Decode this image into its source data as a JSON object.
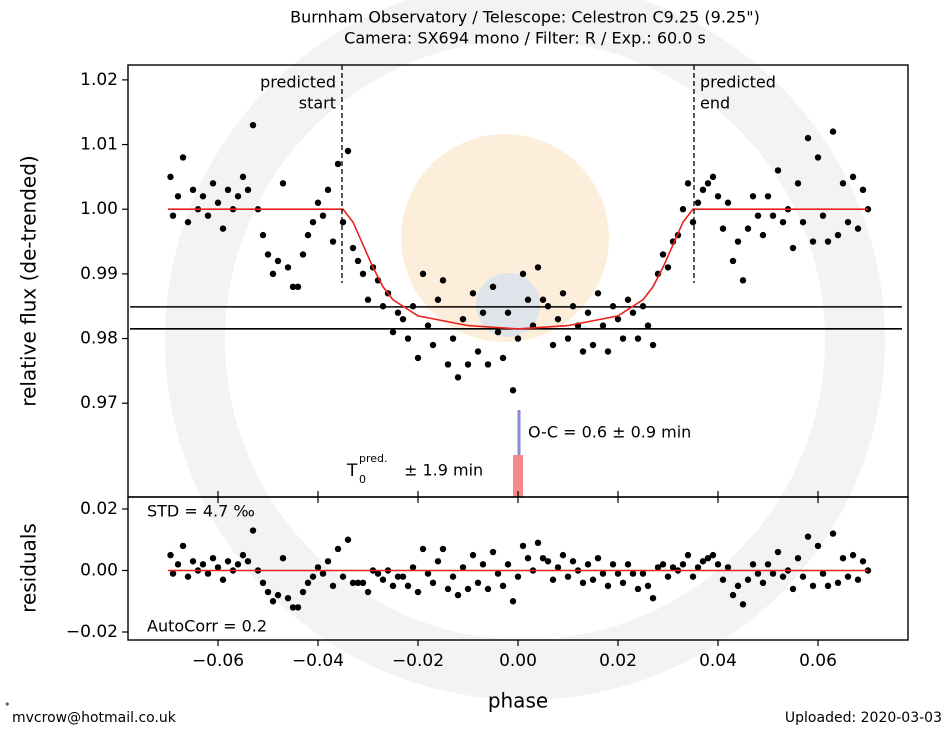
{
  "chart_data": [
    {
      "type": "scatter",
      "title": [
        "Burnham Observatory / Telescope: Celestron C9.25 (9.25\")",
        "Camera: SX694 mono / Filter: R / Exp.: 60.0 s"
      ],
      "ylabel": "relative flux (de-trended)",
      "color": "#000000",
      "x": [
        -0.0695,
        -0.069,
        -0.068,
        -0.067,
        -0.066,
        -0.065,
        -0.064,
        -0.063,
        -0.062,
        -0.061,
        -0.06,
        -0.059,
        -0.058,
        -0.057,
        -0.056,
        -0.055,
        -0.054,
        -0.053,
        -0.052,
        -0.051,
        -0.05,
        -0.049,
        -0.048,
        -0.047,
        -0.046,
        -0.045,
        -0.044,
        -0.043,
        -0.042,
        -0.041,
        -0.04,
        -0.039,
        -0.038,
        -0.037,
        -0.036,
        -0.035,
        -0.034,
        -0.033,
        -0.032,
        -0.031,
        -0.03,
        -0.029,
        -0.028,
        -0.027,
        -0.026,
        -0.025,
        -0.024,
        -0.023,
        -0.022,
        -0.021,
        -0.02,
        -0.019,
        -0.018,
        -0.017,
        -0.016,
        -0.015,
        -0.014,
        -0.013,
        -0.012,
        -0.011,
        -0.01,
        -0.009,
        -0.008,
        -0.007,
        -0.006,
        -0.005,
        -0.004,
        -0.003,
        -0.002,
        -0.001,
        0,
        0.001,
        0.002,
        0.003,
        0.004,
        0.005,
        0.006,
        0.007,
        0.008,
        0.009,
        0.01,
        0.011,
        0.012,
        0.013,
        0.014,
        0.015,
        0.016,
        0.017,
        0.018,
        0.019,
        0.02,
        0.021,
        0.022,
        0.023,
        0.024,
        0.025,
        0.026,
        0.027,
        0.028,
        0.029,
        0.03,
        0.031,
        0.032,
        0.033,
        0.034,
        0.035,
        0.036,
        0.037,
        0.038,
        0.039,
        0.04,
        0.041,
        0.042,
        0.043,
        0.044,
        0.045,
        0.046,
        0.047,
        0.048,
        0.049,
        0.05,
        0.051,
        0.052,
        0.053,
        0.054,
        0.055,
        0.056,
        0.057,
        0.058,
        0.059,
        0.06,
        0.061,
        0.062,
        0.063,
        0.064,
        0.065,
        0.066,
        0.067,
        0.068,
        0.069,
        0.07
      ],
      "values": [
        1.005,
        0.999,
        1.002,
        1.008,
        0.998,
        1.003,
        1.0,
        1.002,
        0.999,
        1.004,
        1.001,
        0.997,
        1.003,
        1.0,
        1.002,
        1.005,
        1.003,
        1.013,
        1.0,
        0.996,
        0.993,
        0.99,
        0.992,
        1.004,
        0.991,
        0.988,
        0.988,
        0.993,
        0.996,
        0.998,
        1.001,
        0.999,
        1.003,
        0.995,
        1.007,
        0.998,
        1.009,
        0.994,
        0.992,
        0.99,
        0.986,
        0.991,
        0.989,
        0.985,
        0.987,
        0.981,
        0.984,
        0.983,
        0.98,
        0.985,
        0.977,
        0.99,
        0.982,
        0.979,
        0.986,
        0.989,
        0.976,
        0.98,
        0.974,
        0.983,
        0.976,
        0.987,
        0.978,
        0.984,
        0.976,
        0.988,
        0.981,
        0.977,
        0.984,
        0.972,
        0.98,
        0.99,
        0.986,
        0.982,
        0.991,
        0.986,
        0.985,
        0.979,
        0.983,
        0.987,
        0.98,
        0.985,
        0.982,
        0.978,
        0.984,
        0.979,
        0.987,
        0.982,
        0.978,
        0.985,
        0.983,
        0.98,
        0.986,
        0.984,
        0.98,
        0.985,
        0.982,
        0.979,
        0.99,
        0.993,
        0.991,
        0.995,
        0.996,
        1.0,
        1.004,
        0.998,
        1.001,
        1.003,
        1.004,
        1.005,
        1.002,
        0.997,
        1.001,
        0.992,
        0.995,
        0.989,
        0.997,
        1.002,
        0.999,
        0.996,
        1.002,
        0.999,
        1.006,
        0.998,
        1.0,
        0.994,
        1.004,
        0.998,
        1.011,
        0.995,
        1.008,
        0.999,
        0.995,
        1.012,
        0.996,
        1.004,
        0.998,
        1.005,
        0.997,
        1.003,
        1.0
      ],
      "model": {
        "color": "#e8221e",
        "x": [
          -0.07,
          -0.035,
          -0.033,
          -0.031,
          -0.029,
          -0.027,
          -0.025,
          -0.02,
          -0.01,
          0,
          0.01,
          0.02,
          0.025,
          0.027,
          0.029,
          0.031,
          0.033,
          0.035,
          0.07
        ],
        "values": [
          1.0,
          1.0,
          0.998,
          0.9945,
          0.991,
          0.988,
          0.986,
          0.9835,
          0.982,
          0.9815,
          0.982,
          0.9835,
          0.986,
          0.988,
          0.991,
          0.9945,
          0.998,
          1.0,
          1.0
        ]
      },
      "hlines": [
        0.9849,
        0.9815
      ],
      "predicted_start": {
        "x": -0.0352,
        "label": [
          "predicted",
          "start"
        ]
      },
      "predicted_end": {
        "x": 0.0352,
        "label": [
          "predicted",
          "end"
        ]
      },
      "oc_label": "O-C = 0.6 ± 0.9 min",
      "t0_label": {
        "main": "T",
        "sub": "0",
        "sup": "pred.",
        "rest": "± 1.9 min"
      },
      "xlim": [
        -0.078,
        0.078
      ],
      "xticks": [
        -0.06,
        -0.04,
        -0.02,
        0,
        0.02,
        0.04,
        0.06
      ],
      "ylim": [
        0.9555,
        1.0223
      ],
      "yticks": [
        1.02,
        1.01,
        {
          "value": 1.0,
          "label": "1.00"
        },
        0.99,
        0.98,
        0.97
      ]
    },
    {
      "type": "scatter",
      "ylabel": "residuals",
      "xlabel": "phase",
      "color": "#000000",
      "std_label": "STD = 4.7 ‰",
      "autocorr_label": "AutoCorr = 0.2",
      "x": [
        -0.0695,
        -0.069,
        -0.068,
        -0.067,
        -0.066,
        -0.065,
        -0.064,
        -0.063,
        -0.062,
        -0.061,
        -0.06,
        -0.059,
        -0.058,
        -0.057,
        -0.056,
        -0.055,
        -0.054,
        -0.053,
        -0.052,
        -0.051,
        -0.05,
        -0.049,
        -0.048,
        -0.047,
        -0.046,
        -0.045,
        -0.044,
        -0.043,
        -0.042,
        -0.041,
        -0.04,
        -0.039,
        -0.038,
        -0.037,
        -0.036,
        -0.035,
        -0.034,
        -0.033,
        -0.032,
        -0.031,
        -0.03,
        -0.029,
        -0.028,
        -0.027,
        -0.026,
        -0.025,
        -0.024,
        -0.023,
        -0.022,
        -0.021,
        -0.02,
        -0.019,
        -0.018,
        -0.017,
        -0.016,
        -0.015,
        -0.014,
        -0.013,
        -0.012,
        -0.011,
        -0.01,
        -0.009,
        -0.008,
        -0.007,
        -0.006,
        -0.005,
        -0.004,
        -0.003,
        -0.002,
        -0.001,
        0,
        0.001,
        0.002,
        0.003,
        0.004,
        0.005,
        0.006,
        0.007,
        0.008,
        0.009,
        0.01,
        0.011,
        0.012,
        0.013,
        0.014,
        0.015,
        0.016,
        0.017,
        0.018,
        0.019,
        0.02,
        0.021,
        0.022,
        0.023,
        0.024,
        0.025,
        0.026,
        0.027,
        0.028,
        0.029,
        0.03,
        0.031,
        0.032,
        0.033,
        0.034,
        0.035,
        0.036,
        0.037,
        0.038,
        0.039,
        0.04,
        0.041,
        0.042,
        0.043,
        0.044,
        0.045,
        0.046,
        0.047,
        0.048,
        0.049,
        0.05,
        0.051,
        0.052,
        0.053,
        0.054,
        0.055,
        0.056,
        0.057,
        0.058,
        0.059,
        0.06,
        0.061,
        0.062,
        0.063,
        0.064,
        0.065,
        0.066,
        0.067,
        0.068,
        0.069,
        0.07
      ],
      "values": [
        0.005,
        -0.001,
        0.002,
        0.008,
        -0.002,
        0.003,
        0.0,
        0.002,
        -0.001,
        0.004,
        0.001,
        -0.003,
        0.003,
        0.0,
        0.002,
        0.005,
        0.003,
        0.013,
        0.0,
        -0.004,
        -0.007,
        -0.01,
        -0.008,
        0.004,
        -0.009,
        -0.012,
        -0.012,
        -0.007,
        -0.004,
        -0.002,
        0.001,
        -0.001,
        0.003,
        -0.005,
        0.007,
        -0.002,
        0.01,
        -0.004,
        -0.004,
        -0.004,
        -0.007,
        0.0,
        -0.001,
        -0.003,
        0.0,
        -0.005,
        -0.002,
        -0.002,
        -0.005,
        0.001,
        -0.007,
        0.007,
        -0.001,
        -0.004,
        0.003,
        0.007,
        -0.006,
        -0.002,
        -0.008,
        0.001,
        -0.006,
        0.005,
        -0.004,
        0.002,
        -0.006,
        0.006,
        -0.001,
        -0.005,
        0.002,
        -0.01,
        -0.002,
        0.008,
        0.004,
        0.0,
        0.009,
        0.004,
        0.003,
        -0.003,
        0.001,
        0.005,
        -0.002,
        0.003,
        0.0,
        -0.004,
        0.002,
        -0.003,
        0.004,
        -0.001,
        -0.005,
        0.002,
        -0.001,
        -0.004,
        0.002,
        -0.001,
        -0.006,
        -0.001,
        -0.005,
        -0.009,
        0.001,
        0.002,
        -0.002,
        0.001,
        0.0,
        0.002,
        0.005,
        -0.002,
        0.001,
        0.003,
        0.004,
        0.005,
        0.002,
        -0.003,
        0.001,
        -0.008,
        -0.005,
        -0.011,
        -0.003,
        0.002,
        -0.001,
        -0.004,
        0.002,
        -0.001,
        0.006,
        -0.002,
        0.0,
        -0.006,
        0.004,
        -0.002,
        0.011,
        -0.005,
        0.008,
        -0.001,
        -0.005,
        0.012,
        -0.004,
        0.004,
        -0.002,
        0.005,
        -0.003,
        0.003,
        0.0
      ],
      "model": {
        "color": "#e8221e",
        "x": [
          -0.07,
          0.07
        ],
        "values": [
          0,
          0
        ]
      },
      "xlim": [
        -0.078,
        0.078
      ],
      "xticks": [
        {
          "value": -0.06,
          "label": "−0.06"
        },
        {
          "value": -0.04,
          "label": "−0.04"
        },
        {
          "value": -0.02,
          "label": "−0.02"
        },
        {
          "value": 0,
          "label": "0.00"
        },
        0.02,
        0.04,
        0.06
      ],
      "ylim": [
        -0.0226,
        0.0239
      ],
      "yticks": [
        0.02,
        {
          "value": 0,
          "label": "0.00"
        },
        {
          "value": -0.02,
          "label": "−0.02"
        }
      ]
    }
  ],
  "footer": {
    "marker": "*",
    "email": "mvcrow@hotmail.co.uk",
    "uploaded": "Uploaded: 2020-03-03"
  }
}
